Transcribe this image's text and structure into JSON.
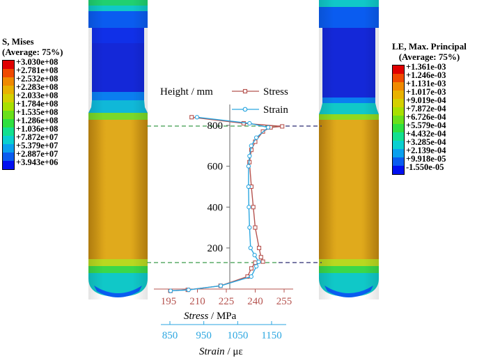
{
  "left_legend": {
    "title_line1": "S, Mises",
    "title_line2": "(Average: 75%)",
    "values": [
      "+3.030e+08",
      "+2.781e+08",
      "+2.532e+08",
      "+2.283e+08",
      "+2.033e+08",
      "+1.784e+08",
      "+1.535e+08",
      "+1.286e+08",
      "+1.036e+08",
      "+7.872e+07",
      "+5.379e+07",
      "+2.887e+07",
      "+3.943e+06"
    ],
    "colors": [
      "#e00000",
      "#f04a00",
      "#f08a00",
      "#e8b200",
      "#d4d000",
      "#a8e000",
      "#6ae01a",
      "#2ee040",
      "#12e090",
      "#0ad0d0",
      "#0aa0ee",
      "#0a5cf0",
      "#0010f0"
    ]
  },
  "right_legend": {
    "title_line1": "LE, Max. Principal",
    "title_line2": "(Average: 75%)",
    "values": [
      "+1.361e-03",
      "+1.246e-03",
      "+1.131e-03",
      "+1.017e-03",
      "+9.019e-04",
      "+7.872e-04",
      "+6.726e-04",
      "+5.579e-04",
      "+4.432e-04",
      "+3.285e-04",
      "+2.139e-04",
      "+9.918e-05",
      "-1.550e-05"
    ],
    "colors": [
      "#e00000",
      "#f04a00",
      "#f08a00",
      "#e8b200",
      "#d4d000",
      "#a8e000",
      "#6ae01a",
      "#2ee040",
      "#12e090",
      "#0ad0d0",
      "#0aa0ee",
      "#0a5cf0",
      "#0010f0"
    ]
  },
  "colors": {
    "stress": "#b5534f",
    "strain": "#2aa6e0",
    "dash_green": "#3a9a4a",
    "dash_navy": "#2a2a70",
    "body_orange": "#d9a017",
    "blue": "#1428d8",
    "axis": "#666666"
  },
  "chart_data": {
    "type": "line",
    "ylabel": "Height / mm",
    "y_ticks": [
      "200",
      "400",
      "600",
      "800"
    ],
    "x_stress_label_italic": "Stress",
    "x_stress_label_unit": " / MPa",
    "x_stress_ticks": [
      "195",
      "210",
      "225",
      "240",
      "255"
    ],
    "x_strain_label_italic": "Strain",
    "x_strain_label_unit": " / με",
    "x_strain_ticks": [
      "850",
      "950",
      "1050",
      "1150"
    ],
    "ylim": [
      -40,
      900
    ],
    "stress_xlim": [
      188,
      258
    ],
    "strain_xlim": [
      820,
      1182
    ],
    "series": [
      {
        "name": "Stress",
        "x": [
          196,
          205,
          222,
          236,
          238,
          240,
          244,
          243,
          242,
          240,
          239,
          238,
          237,
          238,
          240,
          244,
          248,
          254,
          234,
          207
        ],
        "y": [
          -10,
          -5,
          15,
          60,
          100,
          128,
          133,
          155,
          200,
          300,
          400,
          500,
          620,
          680,
          720,
          770,
          790,
          795,
          810,
          840
        ]
      },
      {
        "name": "Strain",
        "x": [
          852,
          905,
          1000,
          1090,
          1105,
          1112,
          1100,
          1088,
          1085,
          1083,
          1082,
          1082,
          1085,
          1090,
          1105,
          1140,
          1085,
          930
        ],
        "y": [
          -10,
          -5,
          15,
          60,
          110,
          132,
          165,
          200,
          300,
          400,
          500,
          600,
          650,
          700,
          740,
          790,
          810,
          840
        ]
      }
    ]
  }
}
